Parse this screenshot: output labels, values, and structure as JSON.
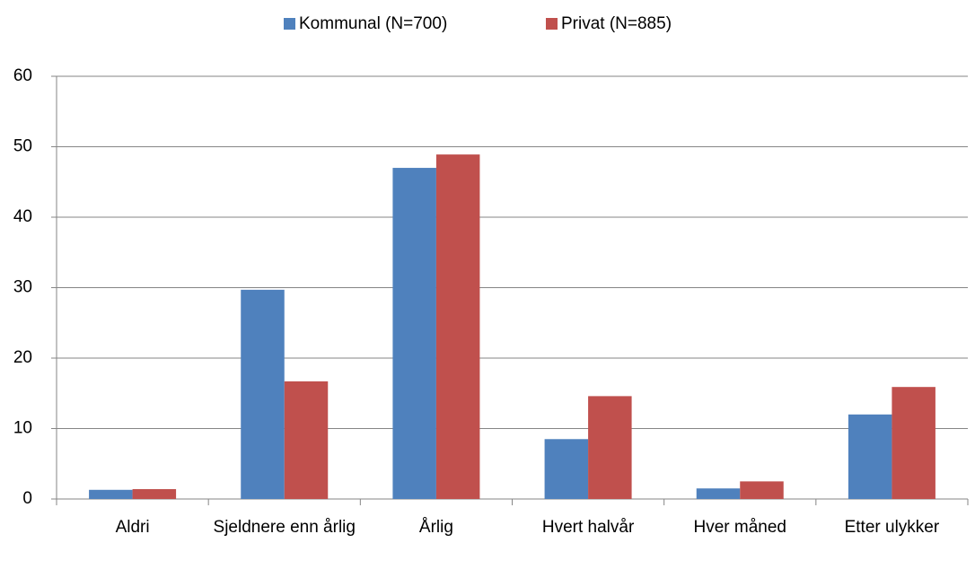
{
  "chart_data": {
    "type": "bar",
    "categories": [
      "Aldri",
      "Sjeldnere enn årlig",
      "Årlig",
      "Hvert halvår",
      "Hver måned",
      "Etter ulykker"
    ],
    "series": [
      {
        "name": "Kommunal (N=700)",
        "color": "#4f81bd",
        "values": [
          1.3,
          29.7,
          47.0,
          8.5,
          1.5,
          12.0
        ]
      },
      {
        "name": "Privat (N=885)",
        "color": "#c0504d",
        "values": [
          1.4,
          16.7,
          48.9,
          14.6,
          2.5,
          15.9
        ]
      }
    ],
    "ylim": [
      0,
      60
    ],
    "yticks": [
      0,
      10,
      20,
      30,
      40,
      50,
      60
    ],
    "grid": true,
    "legend": "top"
  }
}
